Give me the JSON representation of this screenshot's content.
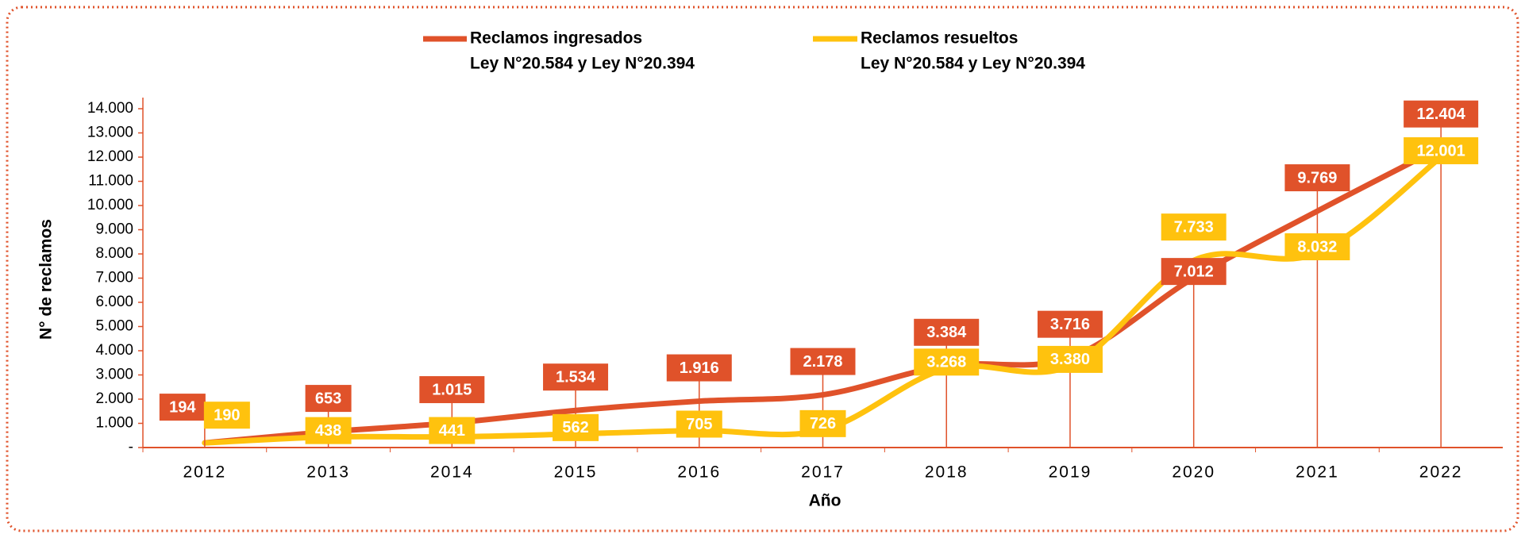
{
  "chart_data": {
    "type": "line",
    "x_label": "Año",
    "y_label": "N° de reclamos",
    "categories": [
      "2012",
      "2013",
      "2014",
      "2015",
      "2016",
      "2017",
      "2018",
      "2019",
      "2020",
      "2021",
      "2022"
    ],
    "series": [
      {
        "name": "Reclamos ingresados",
        "subname": "Ley N°20.584 y Ley N°20.394",
        "color": "#e0522a",
        "values": [
          194,
          653,
          1015,
          1534,
          1916,
          2178,
          3384,
          3716,
          7012,
          9769,
          12404
        ],
        "value_labels": [
          "194",
          "653",
          "1.015",
          "1.534",
          "1.916",
          "2.178",
          "3.384",
          "3.716",
          "7.012",
          "9.769",
          "12.404"
        ]
      },
      {
        "name": "Reclamos resueltos",
        "subname": "Ley N°20.584 y Ley N°20.394",
        "color": "#ffc20e",
        "values": [
          190,
          438,
          441,
          562,
          705,
          726,
          3268,
          3380,
          7733,
          8032,
          12001
        ],
        "value_labels": [
          "190",
          "438",
          "441",
          "562",
          "705",
          "726",
          "3.268",
          "3.380",
          "7.733",
          "8.032",
          "12.001"
        ]
      }
    ],
    "ylim": [
      0,
      14000
    ],
    "yticks": [
      {
        "value": 0,
        "label": "-"
      },
      {
        "value": 1000,
        "label": "1.000"
      },
      {
        "value": 2000,
        "label": "2.000"
      },
      {
        "value": 3000,
        "label": "3.000"
      },
      {
        "value": 4000,
        "label": "4.000"
      },
      {
        "value": 5000,
        "label": "5.000"
      },
      {
        "value": 6000,
        "label": "6.000"
      },
      {
        "value": 7000,
        "label": "7.000"
      },
      {
        "value": 8000,
        "label": "8.000"
      },
      {
        "value": 9000,
        "label": "9.000"
      },
      {
        "value": 10000,
        "label": "10.000"
      },
      {
        "value": 11000,
        "label": "11.000"
      },
      {
        "value": 12000,
        "label": "12.000"
      },
      {
        "value": 13000,
        "label": "13.000"
      },
      {
        "value": 14000,
        "label": "14.000"
      }
    ],
    "axis_color": "#e0522a"
  }
}
